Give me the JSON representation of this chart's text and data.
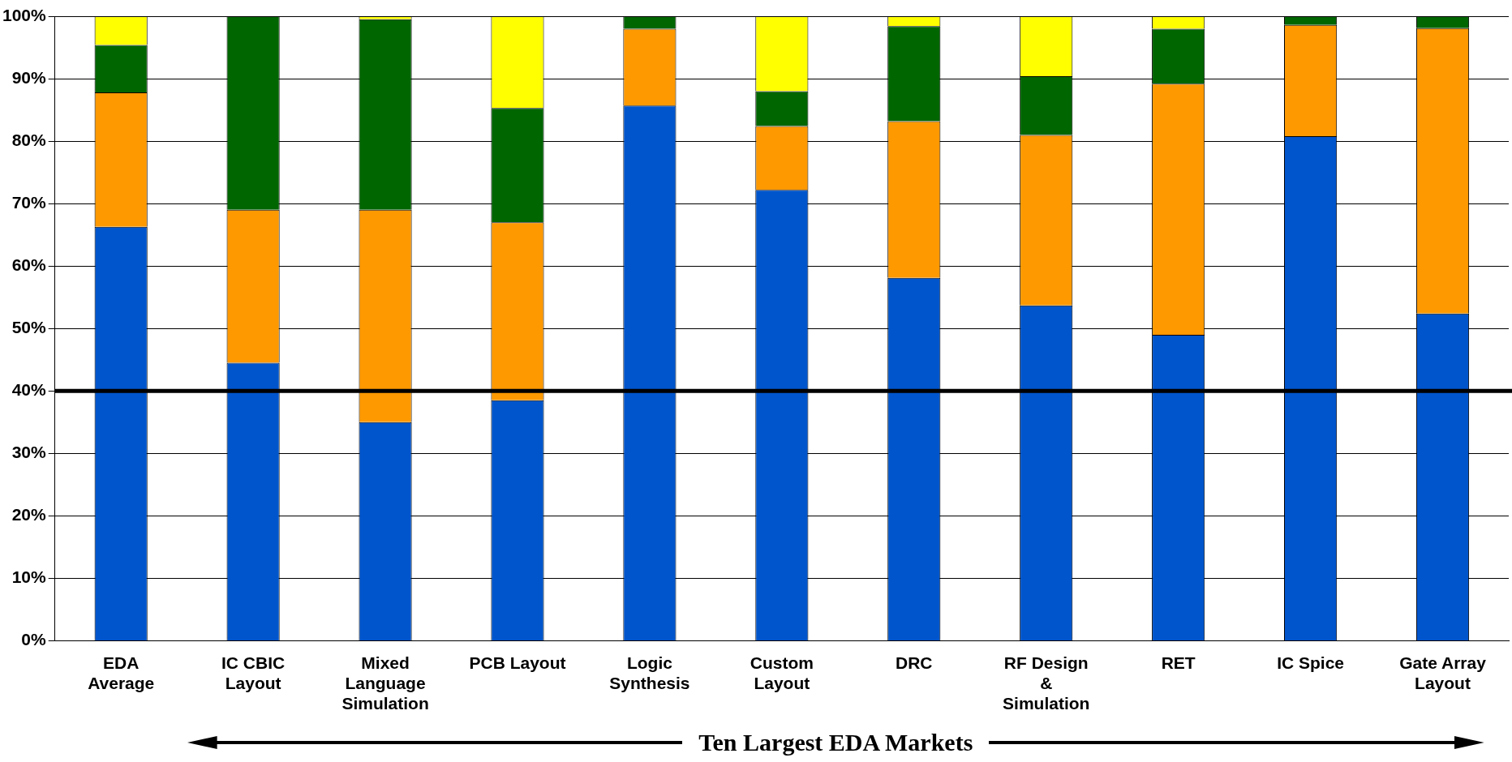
{
  "chart_data": {
    "type": "bar",
    "stacked": true,
    "categories": [
      "EDA Average",
      "IC CBIC Layout",
      "Mixed Language Simulation",
      "PCB Layout",
      "Logic Synthesis",
      "Custom Layout",
      "DRC",
      "RF Design & Simulation",
      "RET",
      "IC Spice",
      "Gate Array Layout"
    ],
    "series": [
      {
        "color": "#0055cc",
        "values": [
          66.3,
          44.5,
          35,
          38.5,
          85.7,
          72.2,
          58.1,
          53.7,
          49,
          80.8,
          52.4
        ]
      },
      {
        "color": "#ff9900",
        "values": [
          21.5,
          24.5,
          34,
          28.5,
          12.3,
          10.2,
          25.1,
          27.3,
          40.2,
          17.8,
          45.7
        ]
      },
      {
        "color": "#006600",
        "values": [
          7.6,
          31,
          30.5,
          18.3,
          2,
          5.6,
          15.2,
          9.4,
          8.8,
          1.4,
          1.9
        ]
      },
      {
        "color": "#ffff00",
        "values": [
          4.6,
          0,
          0.5,
          14.7,
          0,
          12,
          1.6,
          9.6,
          2,
          0,
          0
        ]
      }
    ],
    "ylim": [
      0,
      100
    ],
    "yticks": [
      {
        "value": 0,
        "label": "0%"
      },
      {
        "value": 10,
        "label": "10%"
      },
      {
        "value": 20,
        "label": "20%"
      },
      {
        "value": 30,
        "label": "30%"
      },
      {
        "value": 40,
        "label": "40%"
      },
      {
        "value": 50,
        "label": "50%"
      },
      {
        "value": 60,
        "label": "60%"
      },
      {
        "value": 70,
        "label": "70%"
      },
      {
        "value": 80,
        "label": "80%"
      },
      {
        "value": 90,
        "label": "90%"
      },
      {
        "value": 100,
        "label": "100%"
      }
    ],
    "grid": "y",
    "legend": false,
    "ref_lines": [
      {
        "axis": "y",
        "value": 40,
        "color": "#000000"
      }
    ],
    "annotations": [
      "Ten Largest EDA Markets"
    ]
  }
}
